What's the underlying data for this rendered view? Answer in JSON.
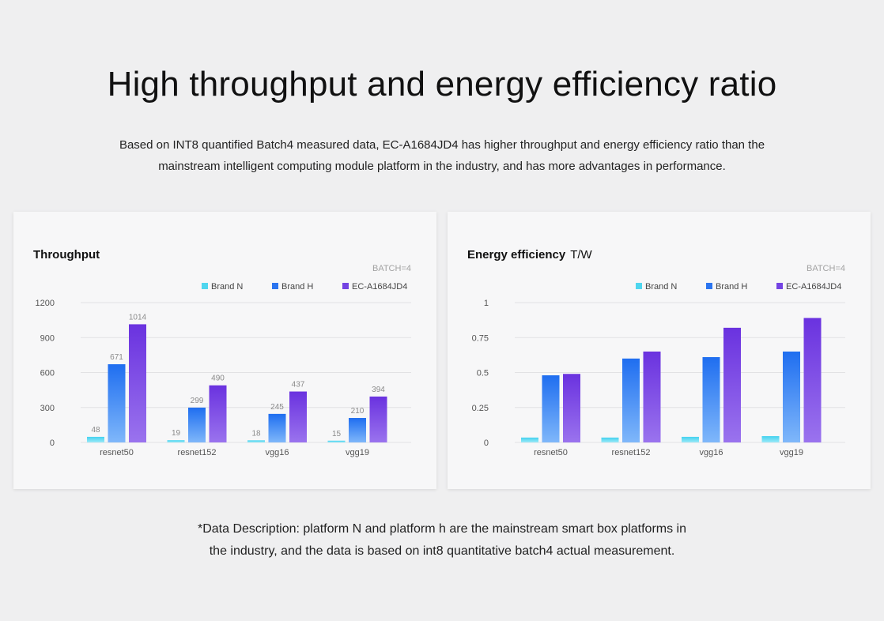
{
  "page": {
    "title": "High throughput and energy efficiency ratio",
    "description_line1": "Based on INT8 quantified Batch4 measured data, EC-A1684JD4 has higher throughput and energy efficiency ratio than the",
    "description_line2": "mainstream intelligent computing module platform in the industry, and has more advantages in performance.",
    "note_line1": "*Data Description: platform N and platform h are the mainstream smart box platforms in",
    "note_line2": "the industry, and the data is based on int8 quantitative batch4 actual measurement."
  },
  "colors": {
    "brand_n": "#4fd6ef",
    "brand_h": "#2b75f0",
    "ec": "#7443e3",
    "grid": "#e2e2e4",
    "tick_text": "#555555",
    "data_label": "#8a8a8a"
  },
  "chart_data": [
    {
      "type": "bar",
      "title": "Throughput",
      "unit": "",
      "batch_label": "BATCH=4",
      "categories": [
        "resnet50",
        "resnet152",
        "vgg16",
        "vgg19"
      ],
      "series": [
        {
          "name": "Brand N",
          "values": [
            48,
            19,
            18,
            15
          ]
        },
        {
          "name": "Brand H",
          "values": [
            671,
            299,
            245,
            210
          ]
        },
        {
          "name": "EC-A1684JD4",
          "values": [
            1014,
            490,
            437,
            394
          ]
        }
      ],
      "ylim": [
        0,
        1200
      ],
      "yticks": [
        "0",
        "300",
        "600",
        "900",
        "1200"
      ],
      "show_value_labels": true,
      "grid": true,
      "legend_position": "top-right"
    },
    {
      "type": "bar",
      "title": "Energy efficiency",
      "unit": "T/W",
      "batch_label": "BATCH=4",
      "categories": [
        "resnet50",
        "resnet152",
        "vgg16",
        "vgg19"
      ],
      "series": [
        {
          "name": "Brand N",
          "values": [
            0.035,
            0.035,
            0.04,
            0.045
          ]
        },
        {
          "name": "Brand H",
          "values": [
            0.48,
            0.6,
            0.61,
            0.65
          ]
        },
        {
          "name": "EC-A1684JD4",
          "values": [
            0.49,
            0.65,
            0.82,
            0.89
          ]
        }
      ],
      "ylim": [
        0,
        1
      ],
      "yticks": [
        "0",
        "0.25",
        "0.5",
        "0.75",
        "1"
      ],
      "show_value_labels": false,
      "grid": true,
      "legend_position": "top-right"
    }
  ]
}
